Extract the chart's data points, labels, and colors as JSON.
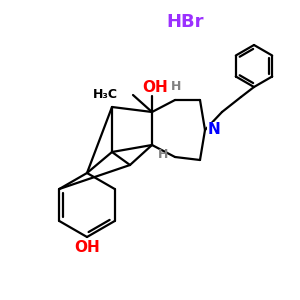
{
  "hbr_text": "HBr",
  "hbr_color": "#9B30FF",
  "oh_top_text": "OH",
  "oh_top_color": "#FF0000",
  "oh_bottom_text": "OH",
  "oh_bottom_color": "#FF0000",
  "n_text": "N",
  "n_color": "#0000FF",
  "h_top_text": "H",
  "h_bottom_text": "H",
  "h_color": "#808080",
  "me_text": "H₃C",
  "background_color": "#FFFFFF",
  "line_color": "#000000",
  "line_width": 1.6
}
